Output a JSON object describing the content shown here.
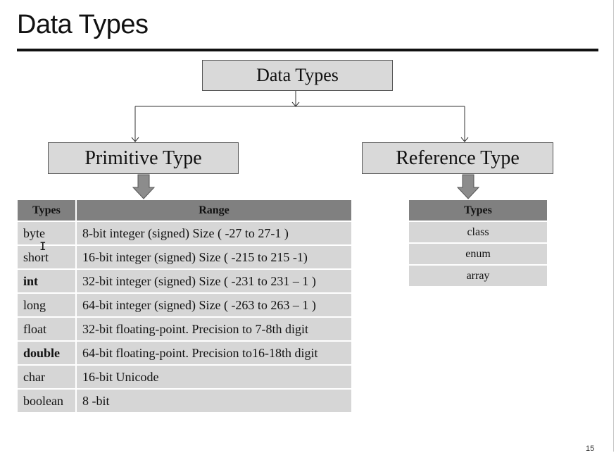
{
  "slide": {
    "title": "Data Types",
    "page_number": "15"
  },
  "diagram": {
    "root": "Data Types",
    "left": "Primitive Type",
    "right": "Reference Type"
  },
  "primitive_table": {
    "headers": [
      "Types",
      "Range"
    ],
    "rows": [
      {
        "type": "byte",
        "range": "8-bit integer (signed) Size ( -27 to 27-1 )",
        "bold": false
      },
      {
        "type": "short",
        "range": "16-bit integer (signed) Size ( -215 to 215 -1)",
        "bold": false
      },
      {
        "type": "int",
        "range": "32-bit integer (signed) Size ( -231 to 231 – 1 )",
        "bold": true
      },
      {
        "type": "long",
        "range": "64-bit integer (signed) Size ( -263 to 263 – 1 )",
        "bold": false
      },
      {
        "type": "float",
        "range": "32-bit  floating-point. Precision  to 7-8th digit",
        "bold": false
      },
      {
        "type": "double",
        "range": "64-bit floating-point. Precision to16-18th digit",
        "bold": true
      },
      {
        "type": "char",
        "range": "16-bit Unicode",
        "bold": false
      },
      {
        "type": "boolean",
        "range": "8 -bit",
        "bold": false
      }
    ]
  },
  "reference_table": {
    "header": "Types",
    "rows": [
      "class",
      "enum",
      "array"
    ]
  },
  "colors": {
    "box_fill": "#d9d9d9",
    "header_fill": "#808080",
    "cell_fill": "#d6d6d6"
  }
}
